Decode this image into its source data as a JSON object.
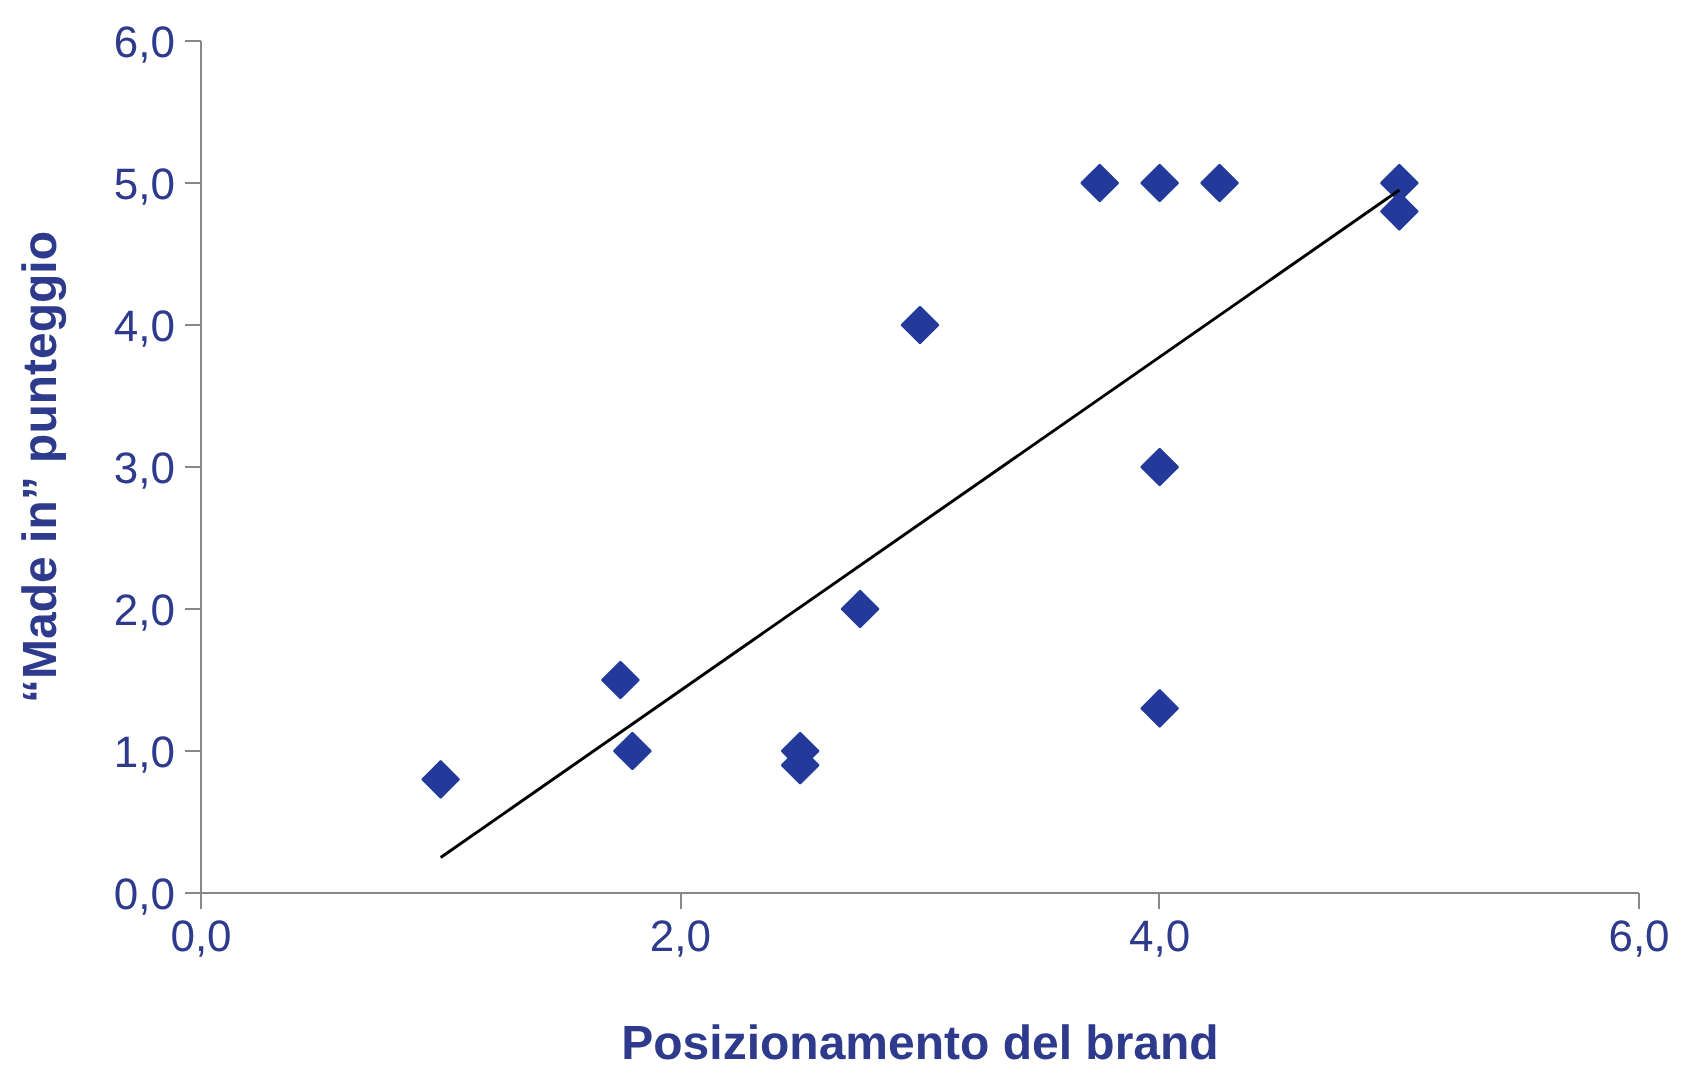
{
  "chart_data": {
    "type": "scatter",
    "xlabel": "Posizionamento del brand",
    "ylabel": "“Made in” punteggio",
    "xlim": [
      0,
      6
    ],
    "ylim": [
      0,
      6
    ],
    "xticks": [
      {
        "value": 0,
        "label": "0,0"
      },
      {
        "value": 2,
        "label": "2,0"
      },
      {
        "value": 4,
        "label": "4,0"
      },
      {
        "value": 6,
        "label": "6,0"
      }
    ],
    "yticks": [
      {
        "value": 0,
        "label": "0,0"
      },
      {
        "value": 1,
        "label": "1,0"
      },
      {
        "value": 2,
        "label": "2,0"
      },
      {
        "value": 3,
        "label": "3,0"
      },
      {
        "value": 4,
        "label": "4,0"
      },
      {
        "value": 5,
        "label": "5,0"
      },
      {
        "value": 6,
        "label": "6,0"
      }
    ],
    "series": [
      {
        "color": "#233a9b",
        "marker": "diamond",
        "x": [
          1.0,
          1.75,
          1.8,
          2.5,
          2.5,
          2.75,
          3.0,
          3.75,
          4.0,
          4.25,
          4.0,
          4.0,
          5.0,
          5.0
        ],
        "values": [
          0.8,
          1.5,
          1.0,
          1.0,
          0.9,
          2.0,
          4.0,
          5.0,
          5.0,
          5.0,
          3.0,
          1.3,
          5.0,
          4.8
        ]
      },
      {
        "type": "line",
        "marker": "none",
        "color": "#000000",
        "x": [
          1.0,
          5.0
        ],
        "values": [
          0.25,
          4.95
        ]
      }
    ]
  }
}
